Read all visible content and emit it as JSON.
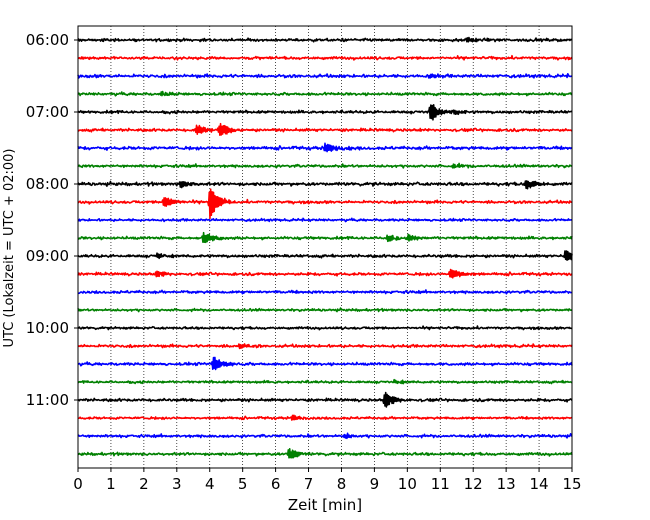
{
  "chart_data": {
    "type": "line",
    "title": "",
    "xlabel": "Zeit  [min]",
    "ylabel": "UTC (Lokalzeit = UTC + 02:00)",
    "xlim": [
      0,
      15
    ],
    "xticks": [
      0,
      1,
      2,
      3,
      4,
      5,
      6,
      7,
      8,
      9,
      10,
      11,
      12,
      13,
      14,
      15
    ],
    "x_grid": true,
    "grid_style": "dotted",
    "y_tick_labels": [
      "06:00",
      "07:00",
      "08:00",
      "09:00",
      "10:00",
      "11:00"
    ],
    "color_cycle": [
      "#000000",
      "#ff0000",
      "#0000ff",
      "#008000"
    ],
    "traces": [
      {
        "start": "06:00",
        "color": "#000000",
        "amplitude": 0.07,
        "events": [
          {
            "t": 11.8,
            "a": 0.15
          }
        ]
      },
      {
        "start": "06:15",
        "color": "#ff0000",
        "amplitude": 0.07,
        "events": []
      },
      {
        "start": "06:30",
        "color": "#0000ff",
        "amplitude": 0.08,
        "events": [
          {
            "t": 10.7,
            "a": 0.12
          }
        ]
      },
      {
        "start": "06:45",
        "color": "#008000",
        "amplitude": 0.07,
        "events": [
          {
            "t": 2.5,
            "a": 0.12
          }
        ]
      },
      {
        "start": "07:00",
        "color": "#000000",
        "amplitude": 0.07,
        "events": [
          {
            "t": 10.7,
            "a": 0.55
          },
          {
            "t": 11.4,
            "a": 0.12
          }
        ]
      },
      {
        "start": "07:15",
        "color": "#ff0000",
        "amplitude": 0.07,
        "events": [
          {
            "t": 3.6,
            "a": 0.3
          },
          {
            "t": 4.3,
            "a": 0.4
          }
        ]
      },
      {
        "start": "07:30",
        "color": "#0000ff",
        "amplitude": 0.08,
        "events": [
          {
            "t": 7.5,
            "a": 0.3
          },
          {
            "t": 8.2,
            "a": 0.12
          }
        ]
      },
      {
        "start": "07:45",
        "color": "#008000",
        "amplitude": 0.07,
        "events": [
          {
            "t": 11.4,
            "a": 0.12
          }
        ]
      },
      {
        "start": "08:00",
        "color": "#000000",
        "amplitude": 0.08,
        "events": [
          {
            "t": 3.1,
            "a": 0.2
          },
          {
            "t": 13.6,
            "a": 0.3
          }
        ]
      },
      {
        "start": "08:15",
        "color": "#ff0000",
        "amplitude": 0.07,
        "events": [
          {
            "t": 2.6,
            "a": 0.35
          },
          {
            "t": 4.0,
            "a": 0.95
          }
        ]
      },
      {
        "start": "08:30",
        "color": "#0000ff",
        "amplitude": 0.06,
        "events": []
      },
      {
        "start": "08:45",
        "color": "#008000",
        "amplitude": 0.07,
        "events": [
          {
            "t": 3.8,
            "a": 0.35
          },
          {
            "t": 9.4,
            "a": 0.2
          },
          {
            "t": 10.0,
            "a": 0.2
          }
        ]
      },
      {
        "start": "09:00",
        "color": "#000000",
        "amplitude": 0.07,
        "events": [
          {
            "t": 2.4,
            "a": 0.15
          },
          {
            "t": 14.8,
            "a": 0.35
          }
        ]
      },
      {
        "start": "09:15",
        "color": "#ff0000",
        "amplitude": 0.07,
        "events": [
          {
            "t": 2.4,
            "a": 0.15
          },
          {
            "t": 11.3,
            "a": 0.35
          }
        ]
      },
      {
        "start": "09:30",
        "color": "#0000ff",
        "amplitude": 0.07,
        "events": []
      },
      {
        "start": "09:45",
        "color": "#008000",
        "amplitude": 0.06,
        "events": []
      },
      {
        "start": "10:00",
        "color": "#000000",
        "amplitude": 0.06,
        "events": []
      },
      {
        "start": "10:15",
        "color": "#ff0000",
        "amplitude": 0.07,
        "events": [
          {
            "t": 4.9,
            "a": 0.15
          }
        ]
      },
      {
        "start": "10:30",
        "color": "#0000ff",
        "amplitude": 0.07,
        "events": [
          {
            "t": 4.1,
            "a": 0.45
          }
        ]
      },
      {
        "start": "10:45",
        "color": "#008000",
        "amplitude": 0.06,
        "events": [
          {
            "t": 9.6,
            "a": 0.12
          }
        ]
      },
      {
        "start": "11:00",
        "color": "#000000",
        "amplitude": 0.07,
        "events": [
          {
            "t": 9.3,
            "a": 0.45
          }
        ]
      },
      {
        "start": "11:15",
        "color": "#ff0000",
        "amplitude": 0.06,
        "events": [
          {
            "t": 6.5,
            "a": 0.15
          }
        ]
      },
      {
        "start": "11:30",
        "color": "#0000ff",
        "amplitude": 0.07,
        "events": [
          {
            "t": 8.1,
            "a": 0.15
          }
        ]
      },
      {
        "start": "11:45",
        "color": "#008000",
        "amplitude": 0.07,
        "events": [
          {
            "t": 6.4,
            "a": 0.35
          }
        ]
      }
    ]
  }
}
